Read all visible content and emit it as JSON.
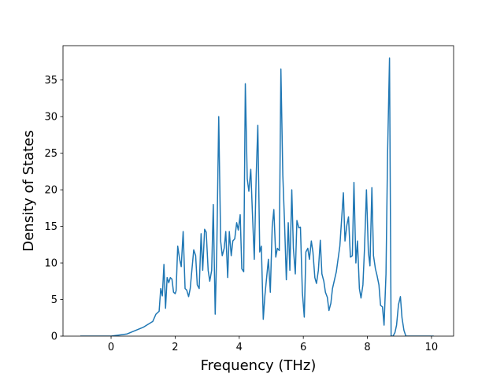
{
  "chart_data": {
    "type": "line",
    "xlabel": "Frequency (THz)",
    "ylabel": "Density of States",
    "xlim": [
      -1.5,
      10.69
    ],
    "ylim": [
      0,
      39.7
    ],
    "xticks": [
      0,
      2,
      4,
      6,
      8,
      10
    ],
    "yticks": [
      0,
      5,
      10,
      15,
      20,
      25,
      30,
      35
    ],
    "series": [
      {
        "color": "#1f77b4",
        "x": [
          -0.96,
          0,
          0.5,
          1.0,
          1.3,
          1.4,
          1.5,
          1.55,
          1.6,
          1.65,
          1.7,
          1.75,
          1.8,
          1.85,
          1.9,
          1.95,
          2.0,
          2.03,
          2.08,
          2.14,
          2.19,
          2.25,
          2.31,
          2.36,
          2.42,
          2.47,
          2.58,
          2.64,
          2.69,
          2.75,
          2.81,
          2.86,
          2.92,
          2.97,
          3.03,
          3.08,
          3.14,
          3.19,
          3.25,
          3.3,
          3.36,
          3.42,
          3.47,
          3.53,
          3.58,
          3.64,
          3.69,
          3.75,
          3.8,
          3.86,
          3.92,
          3.97,
          4.03,
          4.08,
          4.14,
          4.19,
          4.25,
          4.3,
          4.36,
          4.41,
          4.47,
          4.53,
          4.58,
          4.64,
          4.69,
          4.75,
          4.8,
          4.91,
          4.97,
          5.03,
          5.08,
          5.14,
          5.19,
          5.25,
          5.3,
          5.36,
          5.41,
          5.47,
          5.53,
          5.58,
          5.64,
          5.69,
          5.75,
          5.8,
          5.86,
          5.91,
          5.97,
          6.03,
          6.08,
          6.14,
          6.19,
          6.25,
          6.3,
          6.36,
          6.41,
          6.47,
          6.53,
          6.58,
          6.64,
          6.69,
          6.75,
          6.8,
          6.86,
          6.91,
          7.03,
          7.14,
          7.25,
          7.3,
          7.36,
          7.41,
          7.47,
          7.53,
          7.58,
          7.64,
          7.69,
          7.75,
          7.8,
          7.86,
          7.91,
          7.97,
          8.03,
          8.08,
          8.14,
          8.19,
          8.25,
          8.3,
          8.36,
          8.41,
          8.47,
          8.52,
          8.58,
          8.63,
          8.69,
          8.74,
          8.8,
          8.86,
          8.91,
          8.97,
          9.03,
          9.08,
          9.14,
          9.2,
          10.07
        ],
        "values": [
          0,
          0,
          0.3,
          1.2,
          2.0,
          3.0,
          3.4,
          6.5,
          5.5,
          9.8,
          3.8,
          8,
          7.3,
          8,
          7.8,
          6,
          5.8,
          6.2,
          12.3,
          10.5,
          9.5,
          14.3,
          6.5,
          6.3,
          5.4,
          6.5,
          11.8,
          11,
          7,
          6.5,
          14,
          9,
          14.6,
          14.2,
          9,
          7.5,
          9,
          18,
          3.0,
          12,
          30,
          13,
          11,
          12,
          14.3,
          8,
          14.3,
          11,
          13,
          13.3,
          15.5,
          14.5,
          16.6,
          9.2,
          8.8,
          34.5,
          21.5,
          19.8,
          22.8,
          17,
          10.5,
          22,
          28.8,
          11.5,
          12.3,
          2.3,
          5.5,
          10.5,
          6,
          15,
          17.3,
          10.8,
          12,
          11.7,
          36.5,
          22,
          16,
          7.7,
          15.5,
          9,
          20,
          12,
          8.5,
          15.8,
          14.8,
          14.9,
          6,
          2.6,
          11.5,
          12.0,
          10.5,
          13,
          11.5,
          8,
          7.2,
          9,
          13.1,
          8.5,
          7.5,
          6,
          5.3,
          3.5,
          4.5,
          6.5,
          8.8,
          12.3,
          19.6,
          13,
          15.2,
          16.3,
          10.8,
          11,
          21,
          10,
          13,
          6.5,
          5.2,
          7,
          12,
          20,
          11.5,
          9.6,
          20.3,
          11,
          9.2,
          8.3,
          7,
          4.2,
          4,
          1.5,
          8.5,
          25,
          38,
          0,
          0,
          0.5,
          1.5,
          4.3,
          5.4,
          2.5,
          0.8,
          0,
          0
        ]
      }
    ]
  }
}
